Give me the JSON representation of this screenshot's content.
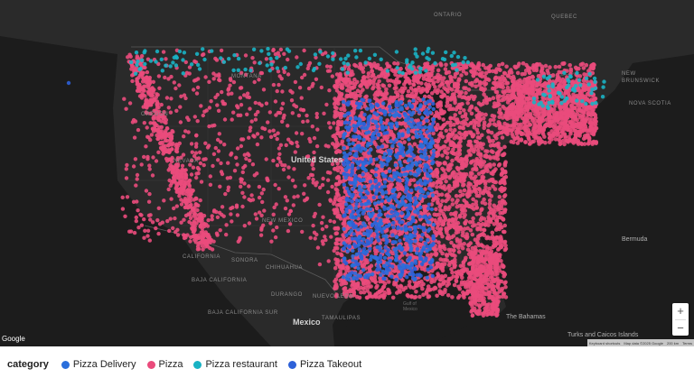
{
  "map": {
    "labels": [
      {
        "id": "ontario",
        "text": "ONTARIO"
      },
      {
        "id": "quebec",
        "text": "QUEBEC"
      },
      {
        "id": "new-brunswick",
        "text": "NEW BRUNSWICK"
      },
      {
        "id": "nova-scotia",
        "text": "NOVA SCOTIA"
      },
      {
        "id": "montana",
        "text": "MONTANA"
      },
      {
        "id": "oregon",
        "text": "OREGON"
      },
      {
        "id": "nevada",
        "text": "NEVADA"
      },
      {
        "id": "california",
        "text": "CALIFORNIA"
      },
      {
        "id": "new-mexico",
        "text": "NEW MEXICO"
      },
      {
        "id": "sonora",
        "text": "SONORA"
      },
      {
        "id": "chihuahua",
        "text": "CHIHUAHUA"
      },
      {
        "id": "baja-california",
        "text": "BAJA CALIFORNIA"
      },
      {
        "id": "baja-california-sur",
        "text": "BAJA CALIFORNIA SUR"
      },
      {
        "id": "durango",
        "text": "DURANGO"
      },
      {
        "id": "nuevo-leon",
        "text": "NUEVO LEON"
      },
      {
        "id": "tamaulipas",
        "text": "TAMAULIPAS"
      },
      {
        "id": "united-states",
        "text": "United States"
      },
      {
        "id": "mexico",
        "text": "Mexico"
      },
      {
        "id": "the-bahamas",
        "text": "The Bahamas"
      },
      {
        "id": "bermuda",
        "text": "Bermuda"
      },
      {
        "id": "turks-caicos",
        "text": "Turks and Caicos Islands"
      },
      {
        "id": "gulf-of-mexico",
        "text": "Gulf of Mexico"
      }
    ],
    "google_logo": "Google",
    "attribution": {
      "shortcuts": "Keyboard shortcuts",
      "data": "Map data ©2025 Google",
      "scale": "200 km",
      "terms": "Terms"
    },
    "zoom_in": "+",
    "zoom_out": "−",
    "dot_colors": {
      "pizza_delivery": "#2a6fdc",
      "pizza": "#ea4b7c",
      "pizza_restaurant": "#19b3c4",
      "pizza_takeout": "#2d61d8"
    }
  },
  "legend": {
    "title": "category",
    "items": [
      {
        "label": "Pizza Delivery",
        "color": "#2a6fdc"
      },
      {
        "label": "Pizza",
        "color": "#ea4b7c"
      },
      {
        "label": "Pizza restaurant",
        "color": "#19b3c4"
      },
      {
        "label": "Pizza Takeout",
        "color": "#2d61d8"
      }
    ]
  }
}
